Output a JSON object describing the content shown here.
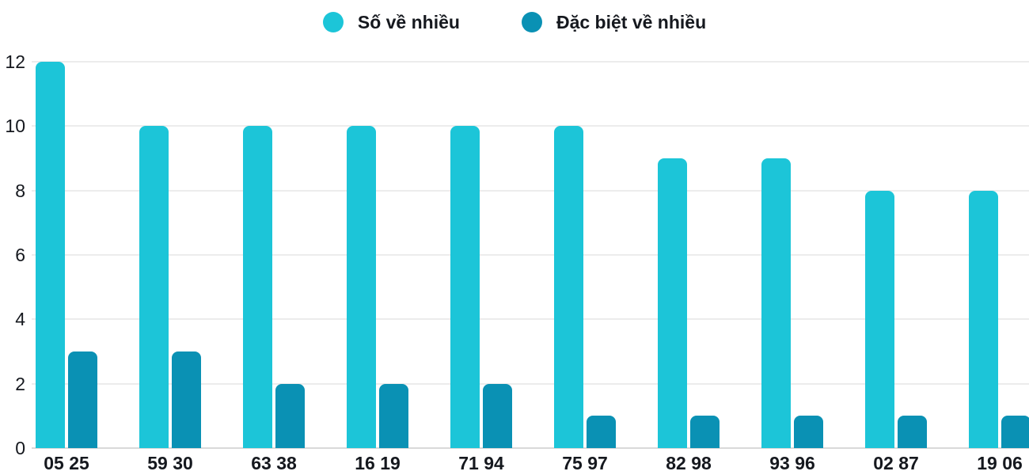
{
  "chart_data": {
    "type": "bar",
    "title": "",
    "xlabel": "",
    "ylabel": "",
    "categories": [
      "05 25",
      "59 30",
      "63 38",
      "16 19",
      "71 94",
      "75 97",
      "82 98",
      "93 96",
      "02 87",
      "19 06"
    ],
    "series": [
      {
        "name": "Số về nhiều",
        "color": "#1cc5d8",
        "values": [
          12,
          10,
          10,
          10,
          10,
          10,
          9,
          9,
          8,
          8
        ]
      },
      {
        "name": "Đặc biệt về nhiều",
        "color": "#0a91b4",
        "values": [
          3,
          3,
          2,
          2,
          2,
          1,
          1,
          1,
          1,
          1
        ]
      }
    ],
    "ylim": [
      0,
      12
    ],
    "yticks": [
      0,
      2,
      4,
      6,
      8,
      10,
      12
    ],
    "grid": true,
    "legend_position": "top-center"
  },
  "colors": {
    "background": "#ffffff",
    "grid": "#ececec",
    "baseline": "#d9d9d9",
    "text": "#15181e"
  }
}
